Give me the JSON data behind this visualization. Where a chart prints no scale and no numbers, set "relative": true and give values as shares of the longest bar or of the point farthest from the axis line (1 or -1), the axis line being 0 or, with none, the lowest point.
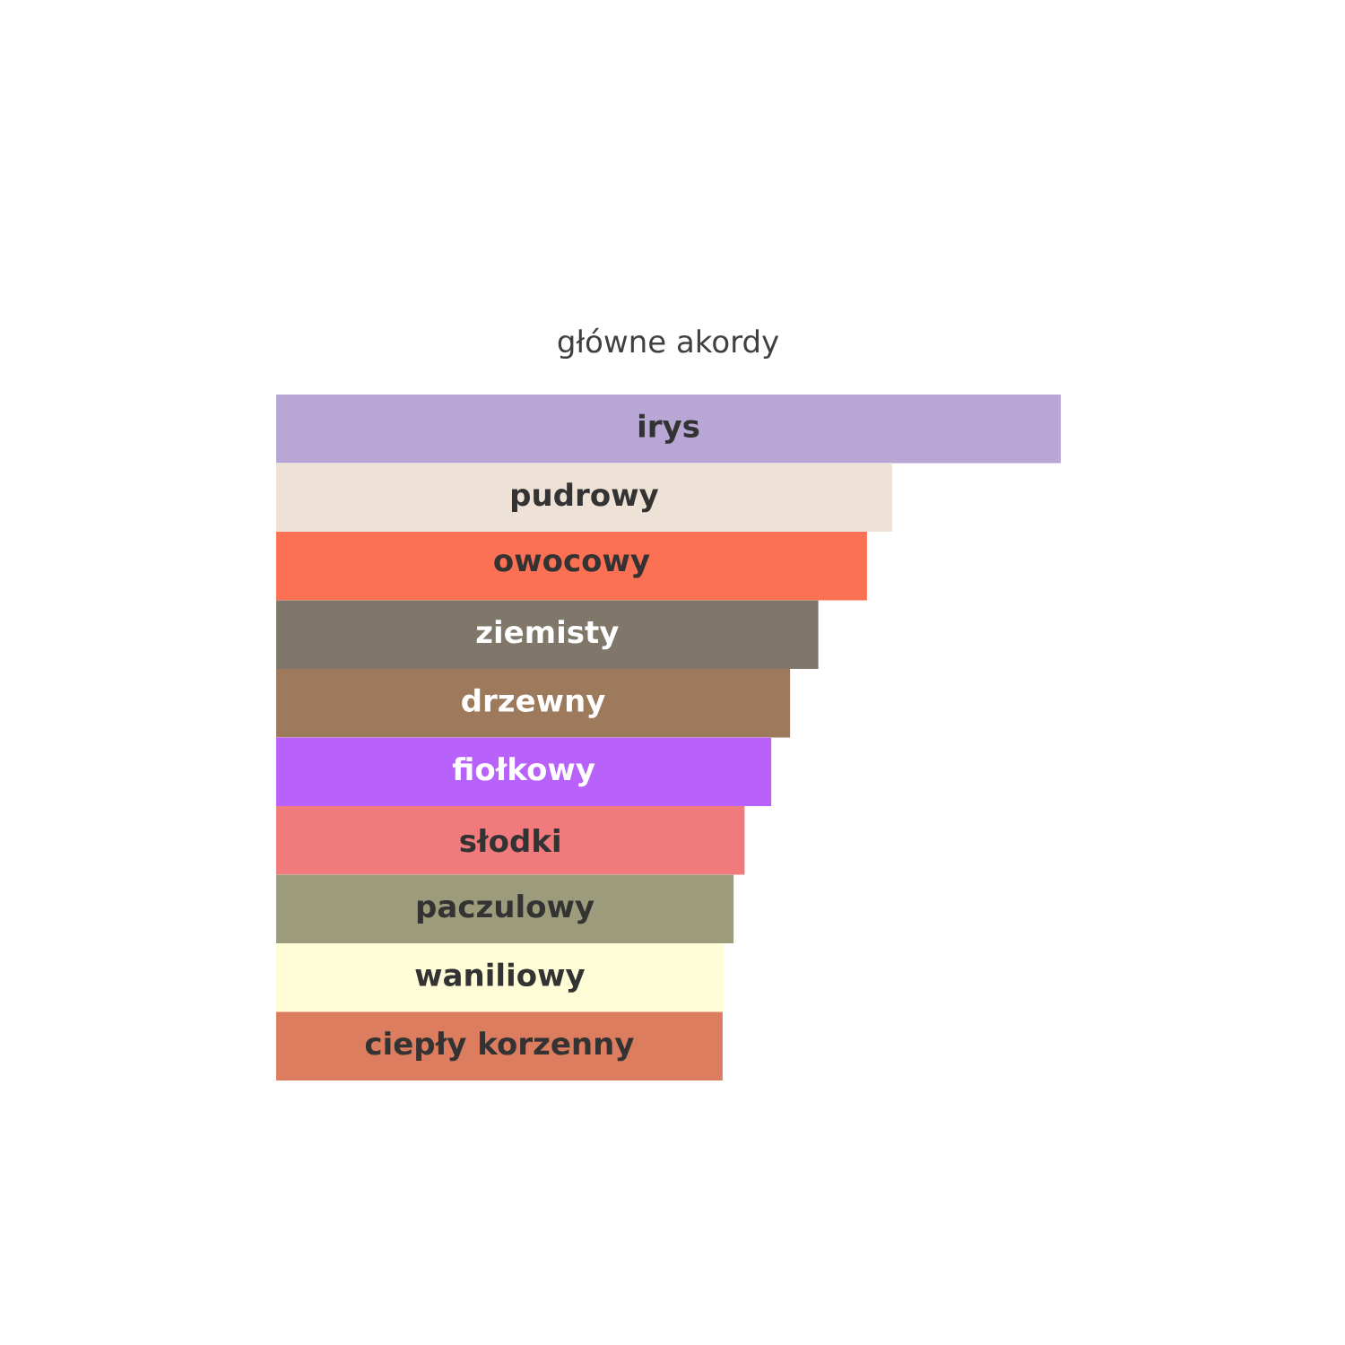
{
  "chart_data": {
    "type": "bar",
    "orientation": "horizontal",
    "relative": true,
    "title": "główne akordy",
    "categories": [
      "irys",
      "pudrowy",
      "owocowy",
      "ziemisty",
      "drzewny",
      "fiołkowy",
      "słodki",
      "paczulowy",
      "waniliowy",
      "ciepły korzenny"
    ],
    "values": [
      1,
      0.785,
      0.753,
      0.691,
      0.655,
      0.631,
      0.597,
      0.583,
      0.57,
      0.569
    ],
    "colors": [
      "#b8a6d4",
      "#eee2d6",
      "#fc7154",
      "#7e776a",
      "#9e7a5c",
      "#b962fb",
      "#f07a7c",
      "#9c9c7c",
      "#fefdd7",
      "#dd7d5f"
    ]
  }
}
